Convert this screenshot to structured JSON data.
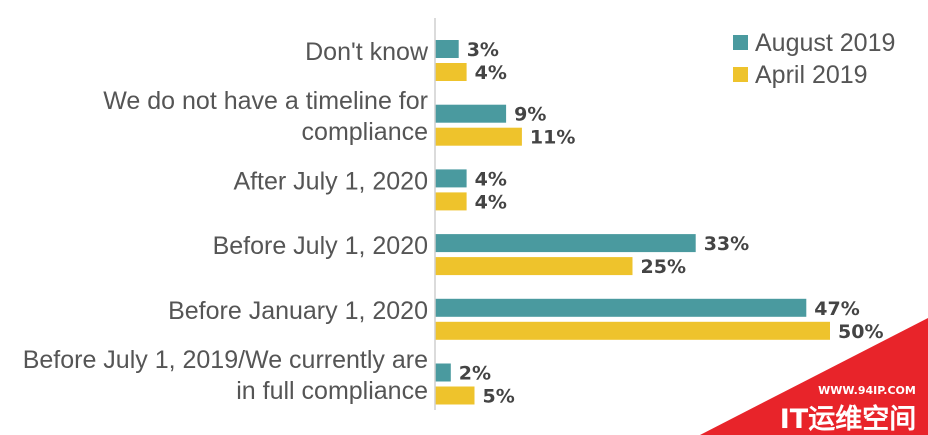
{
  "chart_data": {
    "type": "bar",
    "orientation": "horizontal",
    "categories": [
      [
        "Don't know"
      ],
      [
        "We do not have a timeline for",
        "compliance"
      ],
      [
        "After July 1, 2020"
      ],
      [
        "Before July 1, 2020"
      ],
      [
        "Before January 1, 2020"
      ],
      [
        "Before July 1, 2019/We currently are",
        "in full compliance"
      ]
    ],
    "series": [
      {
        "name": "August 2019",
        "color": "#4a9a9f",
        "values": [
          3,
          9,
          4,
          33,
          47,
          2
        ]
      },
      {
        "name": "April 2019",
        "color": "#eec32c",
        "values": [
          4,
          11,
          4,
          25,
          50,
          5
        ]
      }
    ],
    "value_suffix": "%",
    "xlim": [
      0,
      55
    ],
    "grid": false,
    "legend_position": "top-right"
  },
  "watermark": {
    "url": "WWW.94IP.COM",
    "text": "IT运维空间",
    "color": "#e8242a"
  }
}
